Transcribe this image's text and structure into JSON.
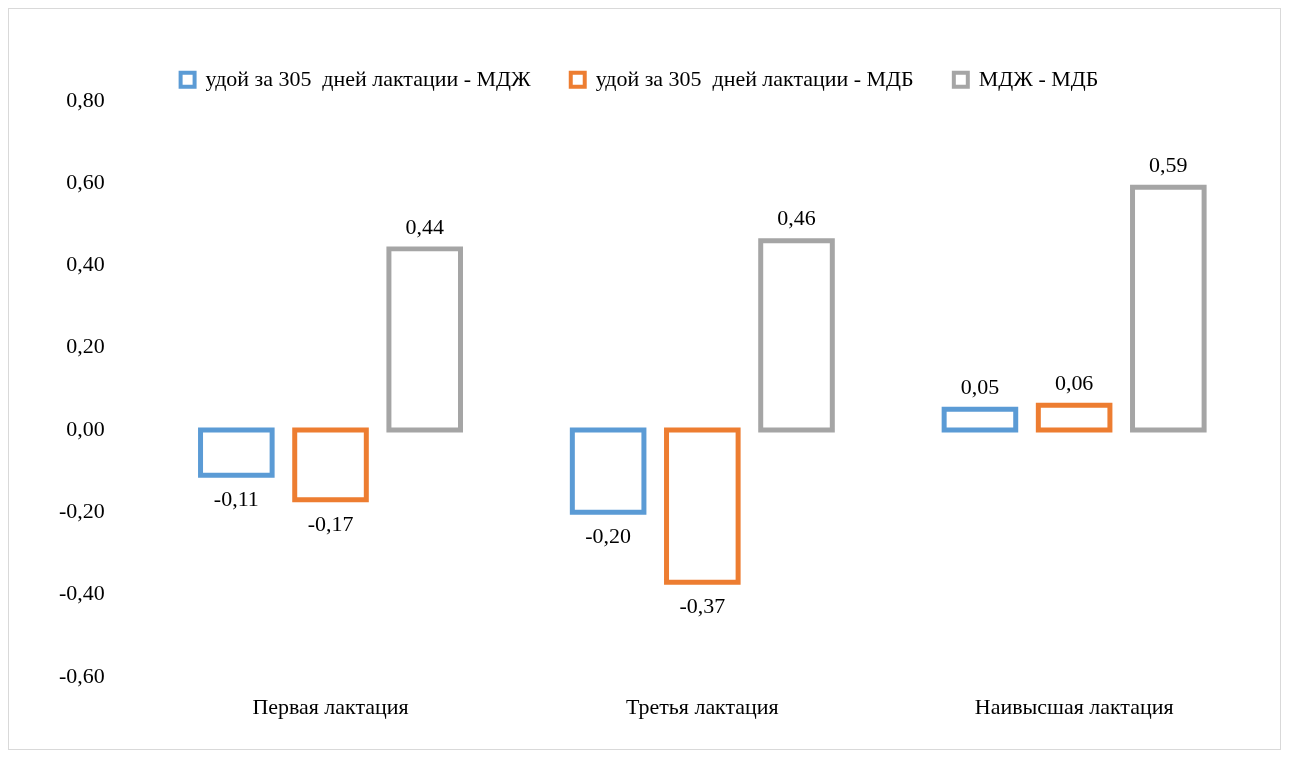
{
  "chart_data": {
    "type": "bar",
    "categories": [
      "Первая лактация",
      "Третья лактация",
      "Наивысшая лактация"
    ],
    "series": [
      {
        "name": "удой за 305  дней лактации - МДЖ",
        "color": "#5b9bd5",
        "values": [
          -0.11,
          -0.2,
          0.05
        ],
        "value_labels": [
          "-0,11",
          "-0,20",
          "0,05"
        ]
      },
      {
        "name": "удой за 305  дней лактации - МДБ",
        "color": "#ed7d31",
        "values": [
          -0.17,
          -0.37,
          0.06
        ],
        "value_labels": [
          "-0,17",
          "-0,37",
          "0,06"
        ]
      },
      {
        "name": "МДЖ - МДБ",
        "color": "#a5a5a5",
        "values": [
          0.44,
          0.46,
          0.59
        ],
        "value_labels": [
          "0,44",
          "0,46",
          "0,59"
        ]
      }
    ],
    "ylim": [
      -0.6,
      0.8
    ],
    "yticks": [
      {
        "value": -0.6,
        "label": "-0,60"
      },
      {
        "value": -0.4,
        "label": "-0,40"
      },
      {
        "value": -0.2,
        "label": "-0,20"
      },
      {
        "value": 0,
        "label": "0,00"
      },
      {
        "value": 0.2,
        "label": "0,20"
      },
      {
        "value": 0.4,
        "label": "0,40"
      },
      {
        "value": 0.6,
        "label": "0,60"
      },
      {
        "value": 0.8,
        "label": "0,80"
      }
    ],
    "grid": false,
    "legend": "top"
  }
}
